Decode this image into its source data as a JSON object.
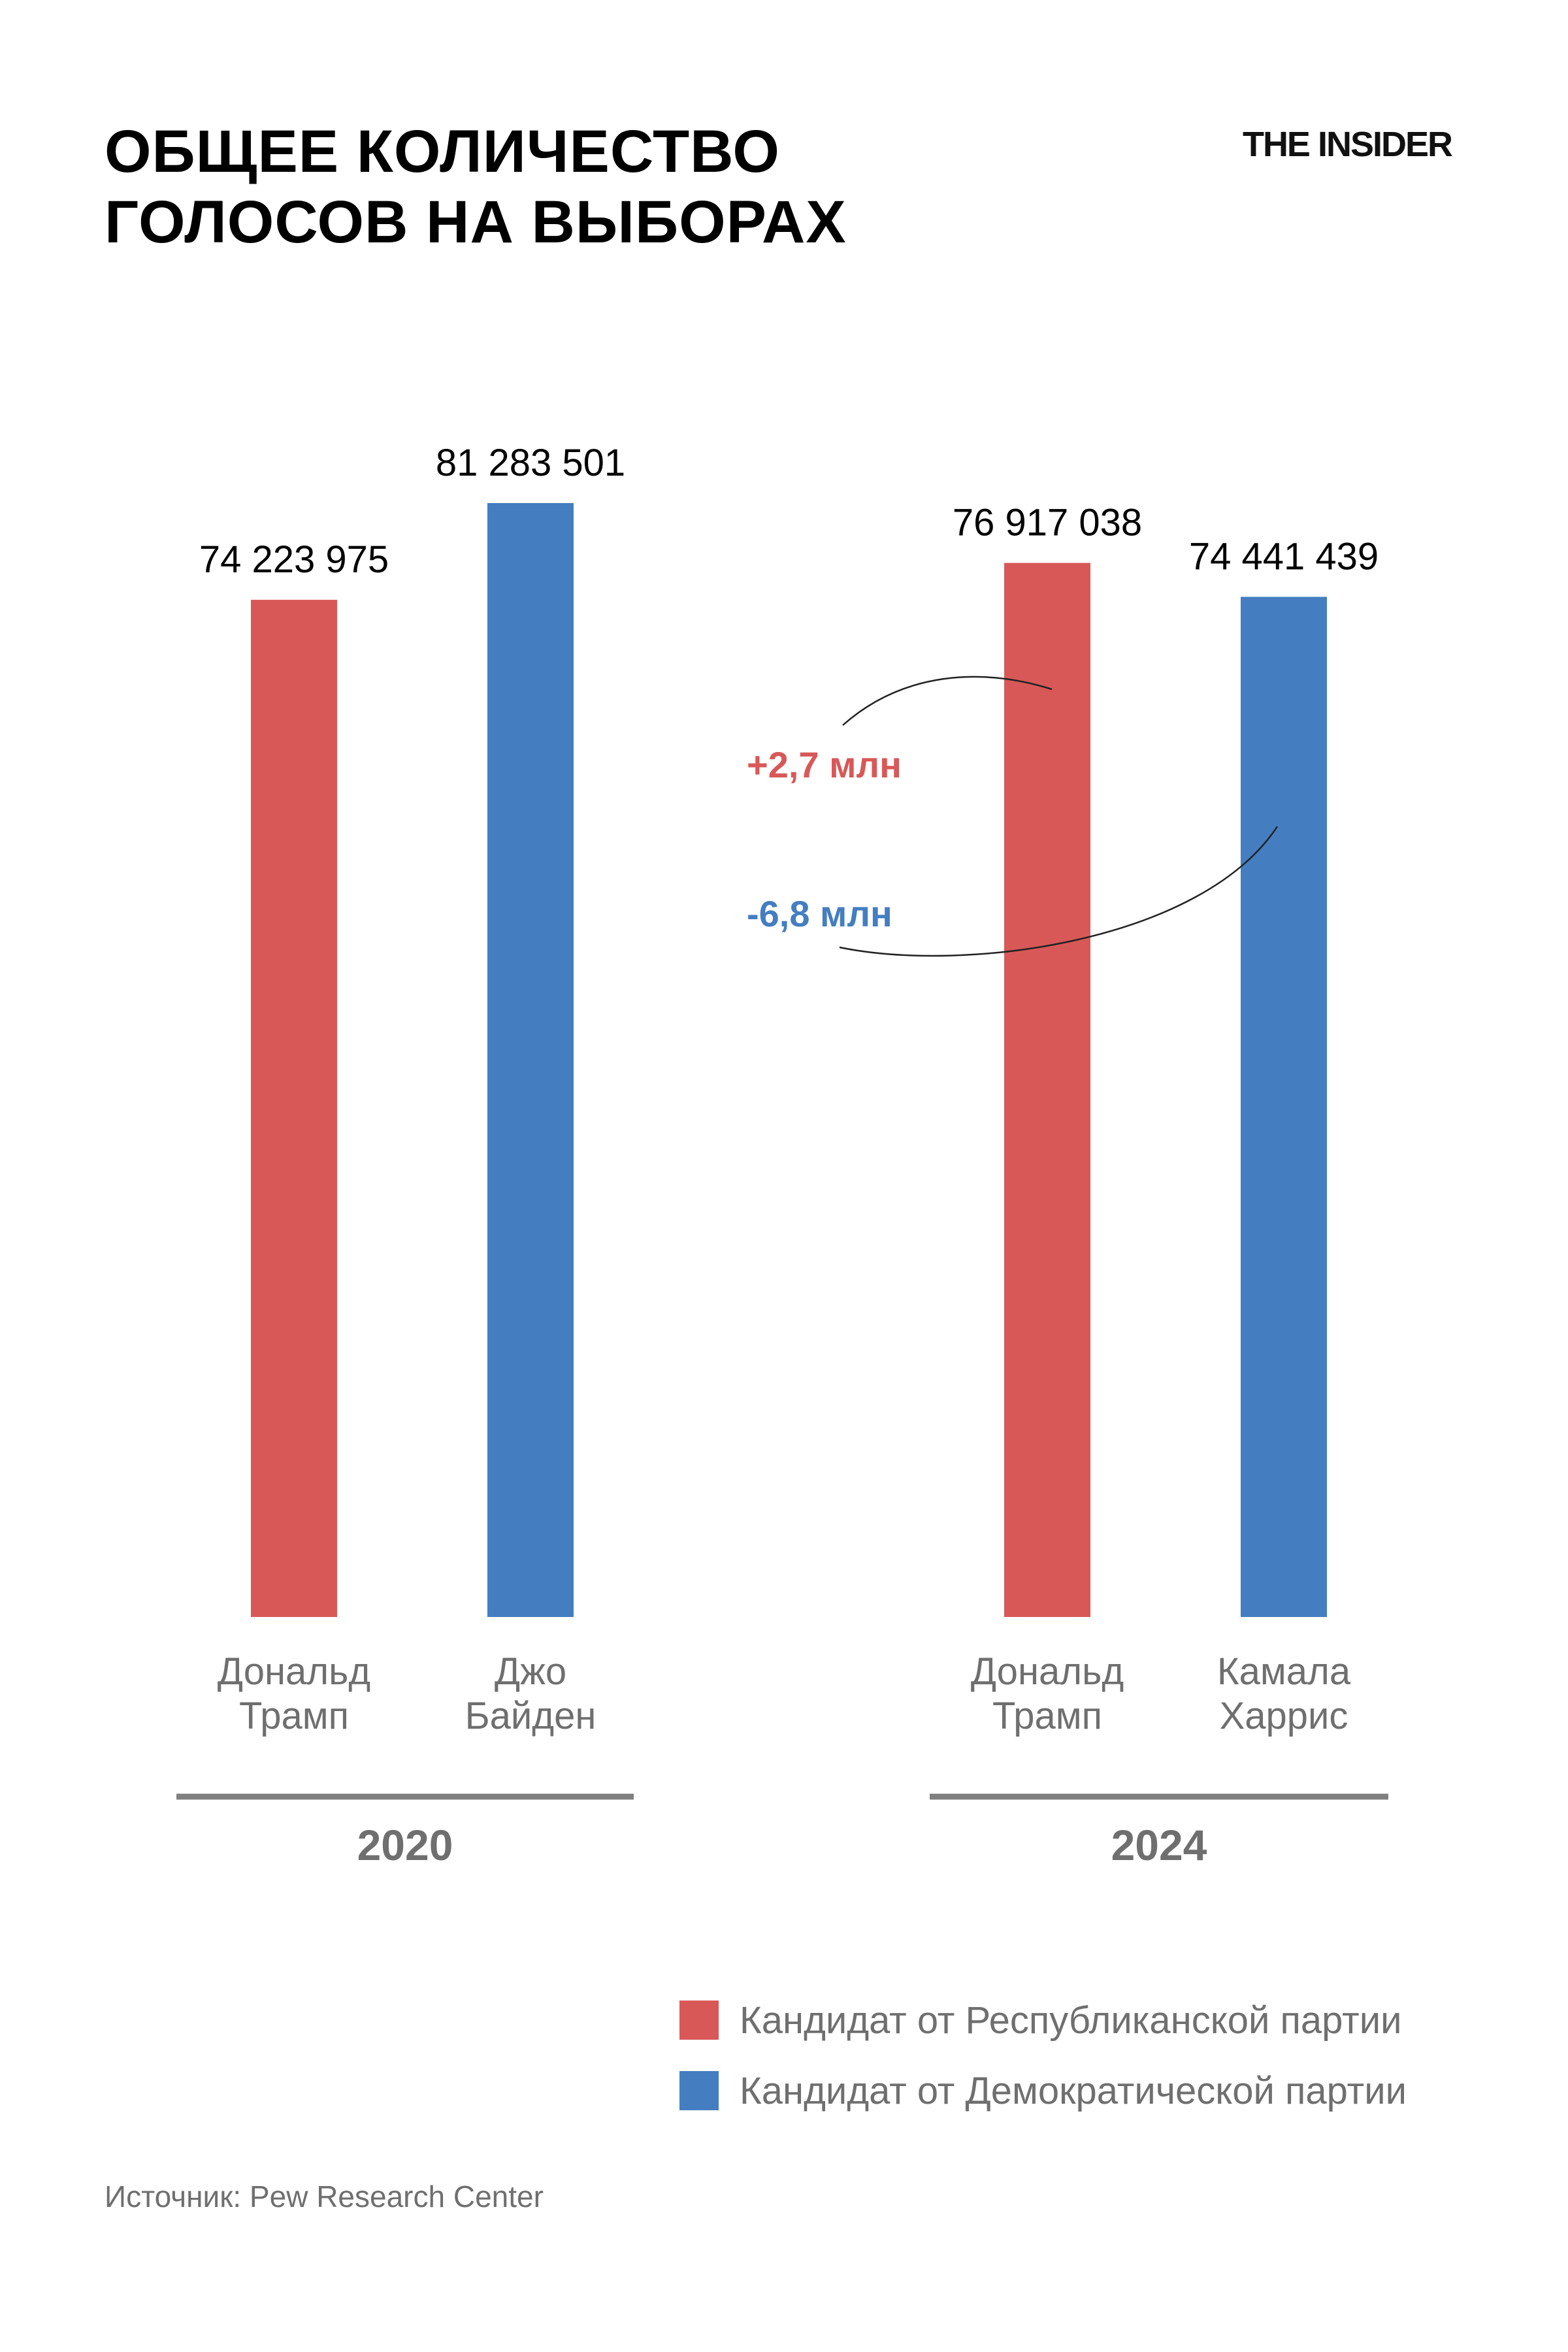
{
  "header": {
    "title_line1": "ОБЩЕЕ КОЛИЧЕСТВО",
    "title_line2": "ГОЛОСОВ НА ВЫБОРАХ",
    "brand": "THE INSIDER"
  },
  "chart_data": {
    "type": "bar",
    "groups": [
      {
        "label": "2020",
        "bars": [
          {
            "name_lines": [
              "Дональд",
              "Трамп"
            ],
            "value": 74223975,
            "value_label": "74 223 975",
            "party": "rep"
          },
          {
            "name_lines": [
              "Джо",
              "Байден"
            ],
            "value": 81283501,
            "value_label": "81 283 501",
            "party": "dem"
          }
        ]
      },
      {
        "label": "2024",
        "bars": [
          {
            "name_lines": [
              "Дональд",
              "Трамп"
            ],
            "value": 76917038,
            "value_label": "76 917 038",
            "party": "rep"
          },
          {
            "name_lines": [
              "Камала",
              "Харрис"
            ],
            "value": 74441439,
            "value_label": "74 441 439",
            "party": "dem"
          }
        ]
      }
    ],
    "annotations": [
      {
        "text": "+2,7 млн",
        "party": "rep"
      },
      {
        "text": "-6,8 млн",
        "party": "dem"
      }
    ],
    "ylim": [
      0,
      81283501
    ],
    "grid": false,
    "legend_position": "bottom-right"
  },
  "legend": {
    "items": [
      {
        "label": "Кандидат от Республиканской партии",
        "party": "rep"
      },
      {
        "label": "Кандидат от Демократической партии",
        "party": "dem"
      }
    ]
  },
  "colors": {
    "rep": "#d85858",
    "dem": "#447ec1",
    "axis": "#7f7f7f",
    "label": "#6f6f6f"
  },
  "source": "Источник: Pew Research Center"
}
